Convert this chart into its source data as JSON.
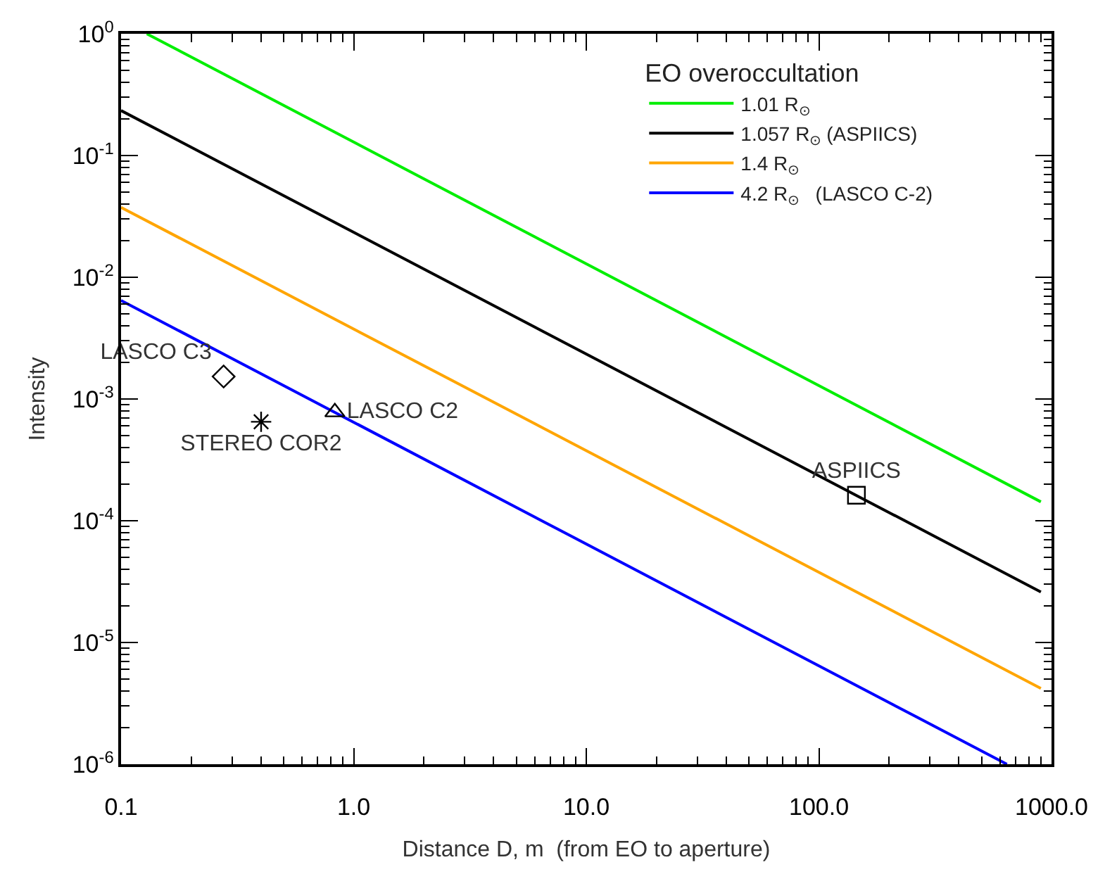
{
  "chart_data": {
    "type": "line",
    "xlabel": "Distance D, m  (from EO to aperture)",
    "ylabel": "Intensity",
    "legend_title": "EO overoccultation",
    "log": "xy",
    "legend": "top right",
    "line_style": "solid",
    "marker": "none",
    "xlim": [
      0.1,
      1000
    ],
    "ylim": [
      1e-06,
      1
    ],
    "xticks": [
      {
        "value": 0.1,
        "label": "0.1"
      },
      {
        "value": 1,
        "label": "1.0"
      },
      {
        "value": 10,
        "label": "10.0"
      },
      {
        "value": 100,
        "label": "100.0"
      },
      {
        "value": 1000,
        "label": "1000.0"
      }
    ],
    "yticks": [
      {
        "value": 1e-06,
        "label": "10$^{-6}$"
      },
      {
        "value": 1e-05,
        "label": "10$^{-5}$"
      },
      {
        "value": 0.0001,
        "label": "10$^{-4}$"
      },
      {
        "value": 0.001,
        "label": "10$^{-3}$"
      },
      {
        "value": 0.01,
        "label": "10$^{-2}$"
      },
      {
        "value": 0.1,
        "label": "10$^{-1}$"
      },
      {
        "value": 1,
        "label": "10$^{0}$"
      }
    ],
    "series": [
      {
        "name": "1.01 R$_{⊙}$",
        "color": "#00ee00",
        "x": [
          0.129,
          900
        ],
        "values": [
          1,
          0.000143
        ]
      },
      {
        "name": "1.057 R$_{⊙}$ (ASPIICS)",
        "color": "#000000",
        "x": [
          0.1,
          900
        ],
        "values": [
          0.234,
          2.6e-05
        ]
      },
      {
        "name": "1.4 R$_{⊙}$",
        "color": "#ffa500",
        "x": [
          0.1,
          900
        ],
        "values": [
          0.0375,
          4.2e-06
        ]
      },
      {
        "name": "4.2 R$_{⊙}$   (LASCO C-2)",
        "color": "#0000ff",
        "x": [
          0.1,
          643
        ],
        "values": [
          0.00645,
          1e-06
        ]
      },
      {
        "name": "LASCO C3",
        "type": "scatter",
        "marker": "diamond",
        "color": "#000000",
        "x": [
          0.276
        ],
        "values": [
          0.00153
        ]
      },
      {
        "name": "STEREO COR2",
        "type": "scatter",
        "marker": "cross",
        "color": "#000000",
        "x": [
          0.4
        ],
        "values": [
          0.00065
        ]
      },
      {
        "name": "LASCO C2",
        "type": "scatter",
        "marker": "triangle",
        "color": "#000000",
        "x": [
          0.83
        ],
        "values": [
          0.00078
        ]
      },
      {
        "name": "ASPIICS",
        "type": "scatter",
        "marker": "square",
        "color": "#000000",
        "x": [
          145
        ],
        "values": [
          0.000162
        ]
      }
    ]
  }
}
